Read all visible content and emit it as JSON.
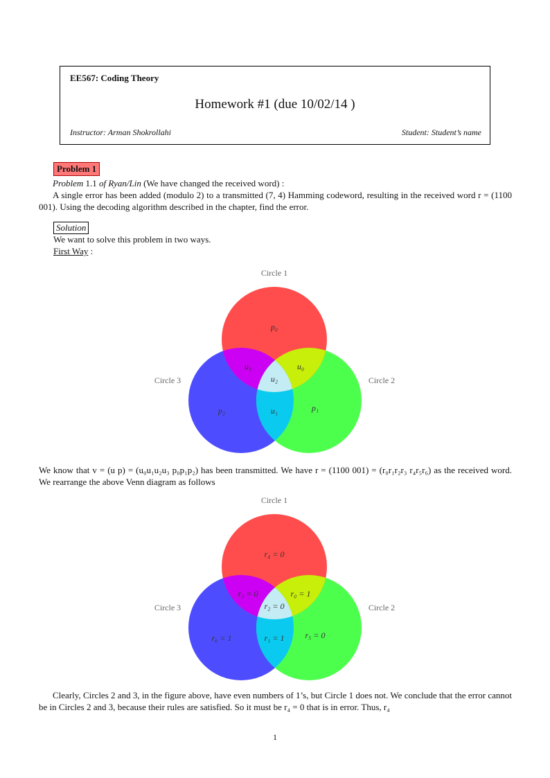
{
  "header": {
    "course": "EE567: Coding Theory",
    "title": "Homework #1 (due 10/02/14 )",
    "instructor": "Instructor: Arman Shokrollahi",
    "student": "Student: Student’s name"
  },
  "problem": {
    "badge": "Problem 1",
    "ref_italic": "Problem",
    "ref_num": " 1.1 ",
    "ref_source": "of Ryan/Lin",
    "ref_note": " (We have changed the received word) :",
    "statement": "A single error has been added (modulo 2) to a transmitted (7, 4) Hamming codeword, resulting in the received word r = (1100 001). Using the decoding algorithm described in the chapter, find the error."
  },
  "solution": {
    "label": "Solution",
    "intro": "We want to solve this problem in two ways.",
    "first_way": "First Way",
    "first_way_suffix": " :",
    "paragraph1": "We know that v = (u p) = (u₀u₁u₂u₃ p₀p₁p₂) has been transmitted. We have r = (1100 001) = (r₀r₁r₂r₃ r₄r₅r₆) as the received word. We rearrange the above Venn diagram as follows",
    "paragraph2": "Clearly, Circles 2 and 3, in the figure above, have even numbers of 1’s, but Circle 1 does not. We conclude that the error cannot be in Circles 2 and 3, because their rules are satisfied. So it must be r₄ = 0 that is in error. Thus, r₄"
  },
  "venn1": {
    "circle1": "Circle 1",
    "circle2": "Circle 2",
    "circle3": "Circle 3",
    "top": "p₀",
    "right": "p₁",
    "left": "p₂",
    "top_right": "u₀",
    "top_left": "u₃",
    "center": "u₂",
    "bottom": "u₁"
  },
  "venn2": {
    "circle1": "Circle 1",
    "circle2": "Circle 2",
    "circle3": "Circle 3",
    "top": "r₄ = 0",
    "right": "r₅ = 0",
    "left": "r₆ = 1",
    "top_right": "r₀ = 1",
    "top_left": "r₃ = 0",
    "center": "r₂ = 0",
    "bottom": "r₁ = 1"
  },
  "colors": {
    "circle1": "#ff4d4d",
    "circle2": "#4dff4d",
    "circle3": "#4d4dff",
    "c1c3": "#cc00f2",
    "c1c2": "#c8ef0a",
    "c2c3": "#0acbef",
    "center": "#c4ecf5"
  },
  "footer": {
    "page_number": "1"
  }
}
